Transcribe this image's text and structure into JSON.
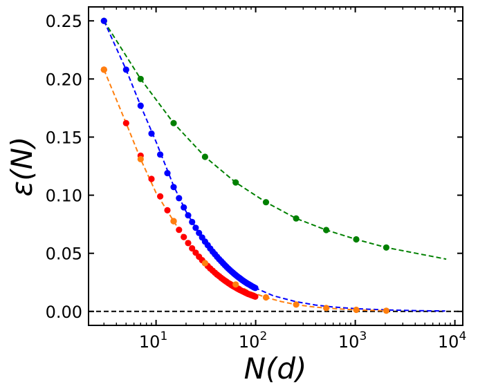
{
  "chart_data": {
    "type": "scatter",
    "title": "",
    "xlabel": "N(d)",
    "ylabel": "ε(N)",
    "xscale": "log",
    "xlim": [
      2.1,
      12000
    ],
    "ylim": [
      -0.012,
      0.262
    ],
    "grid": false,
    "legend": "none",
    "x_ticks": [
      {
        "value": 10,
        "base": "10",
        "exp": "1"
      },
      {
        "value": 100,
        "base": "10",
        "exp": "2"
      },
      {
        "value": 1000,
        "base": "10",
        "exp": "3"
      },
      {
        "value": 10000,
        "base": "10",
        "exp": "4"
      }
    ],
    "y_ticks": [
      {
        "value": 0.0,
        "label": "0.00"
      },
      {
        "value": 0.05,
        "label": "0.05"
      },
      {
        "value": 0.1,
        "label": "0.10"
      },
      {
        "value": 0.15,
        "label": "0.15"
      },
      {
        "value": 0.2,
        "label": "0.20"
      },
      {
        "value": 0.25,
        "label": "0.25"
      }
    ],
    "reference_line": {
      "y": 0.0,
      "color": "#000000",
      "style": "dashed"
    },
    "series": [
      {
        "name": "green",
        "color": "#008000",
        "x": [
          3,
          7,
          15,
          31,
          63,
          127,
          255,
          511,
          1023,
          2047
        ],
        "y": [
          0.25,
          0.2,
          0.162,
          0.133,
          0.111,
          0.094,
          0.08,
          0.07,
          0.062,
          0.055
        ],
        "fit_x": [
          3,
          7,
          15,
          31,
          63,
          127,
          255,
          511,
          1023,
          2047,
          4095,
          8191
        ],
        "fit_y": [
          0.25,
          0.2,
          0.162,
          0.133,
          0.111,
          0.094,
          0.08,
          0.07,
          0.062,
          0.055,
          0.05,
          0.045
        ]
      },
      {
        "name": "blue",
        "color": "#0000ff",
        "x": [
          3,
          5,
          7,
          9,
          11,
          13,
          15,
          17,
          19,
          21,
          23,
          25,
          27,
          29,
          31,
          33,
          35,
          37,
          39,
          41,
          43,
          45,
          47,
          49,
          51,
          53,
          55,
          57,
          59,
          61,
          63,
          65,
          67,
          69,
          71,
          73,
          75,
          77,
          79,
          81,
          83,
          85,
          87,
          89,
          91,
          93,
          95,
          97,
          99
        ],
        "y": [
          0.25,
          0.208,
          0.177,
          0.153,
          0.135,
          0.119,
          0.107,
          0.0974,
          0.0895,
          0.0827,
          0.0769,
          0.0719,
          0.0675,
          0.0636,
          0.0601,
          0.057,
          0.0541,
          0.0515,
          0.0492,
          0.047,
          0.045,
          0.0432,
          0.0415,
          0.0399,
          0.0384,
          0.037,
          0.0357,
          0.0345,
          0.0334,
          0.0323,
          0.0313,
          0.0304,
          0.0295,
          0.0287,
          0.0279,
          0.0271,
          0.0264,
          0.0257,
          0.0251,
          0.0245,
          0.0239,
          0.0234,
          0.0229,
          0.0224,
          0.0219,
          0.0214,
          0.021,
          0.0206,
          0.0202
        ],
        "fit_x": [
          3,
          5,
          7,
          10,
          15,
          20,
          30,
          50,
          70,
          99,
          150,
          250,
          400,
          600,
          1000,
          1500,
          2500,
          4000,
          6000,
          8000
        ],
        "fit_y": [
          0.25,
          0.208,
          0.177,
          0.146,
          0.108,
          0.086,
          0.061,
          0.038,
          0.029,
          0.0202,
          0.0135,
          0.0085,
          0.0055,
          0.0038,
          0.0024,
          0.0017,
          0.0011,
          0.0007,
          0.0005,
          0.0004
        ]
      },
      {
        "name": "red",
        "color": "#ff0000",
        "x": [
          3,
          5,
          7,
          9,
          11,
          13,
          15,
          17,
          19,
          21,
          23,
          25,
          27,
          29,
          31,
          33,
          35,
          37,
          39,
          41,
          43,
          45,
          47,
          49,
          51,
          53,
          55,
          57,
          59,
          61,
          63,
          65,
          67,
          69,
          71,
          73,
          75,
          77,
          79,
          81,
          83,
          85,
          87,
          89,
          91,
          93,
          95,
          97,
          99
        ],
        "y": [
          0.208,
          0.162,
          0.134,
          0.114,
          0.099,
          0.087,
          0.0777,
          0.0702,
          0.064,
          0.0588,
          0.0543,
          0.0505,
          0.0471,
          0.0441,
          0.0415,
          0.0391,
          0.037,
          0.0351,
          0.0333,
          0.0317,
          0.0303,
          0.0289,
          0.0277,
          0.0265,
          0.0255,
          0.0245,
          0.0236,
          0.0227,
          0.0219,
          0.0212,
          0.0205,
          0.0198,
          0.0192,
          0.0186,
          0.0181,
          0.0176,
          0.0171,
          0.0166,
          0.0161,
          0.0157,
          0.0153,
          0.0149,
          0.0146,
          0.0142,
          0.0139,
          0.0136,
          0.0133,
          0.013,
          0.0127
        ]
      },
      {
        "name": "orange",
        "color": "#ff7f0e",
        "x": [
          3,
          7,
          15,
          31,
          63,
          127,
          255,
          511,
          1023,
          2047
        ],
        "y": [
          0.208,
          0.131,
          0.0777,
          0.0415,
          0.0232,
          0.0121,
          0.0059,
          0.0029,
          0.0014,
          0.0006
        ],
        "fit_x": [
          3,
          5,
          7,
          10,
          15,
          20,
          31,
          45,
          63,
          90,
          127,
          180,
          255,
          360,
          511,
          720,
          1023,
          1450,
          2047
        ],
        "fit_y": [
          0.208,
          0.162,
          0.131,
          0.102,
          0.0777,
          0.061,
          0.0415,
          0.031,
          0.0232,
          0.0165,
          0.0121,
          0.0085,
          0.0059,
          0.0041,
          0.0029,
          0.002,
          0.0014,
          0.0009,
          0.0006
        ]
      }
    ]
  }
}
